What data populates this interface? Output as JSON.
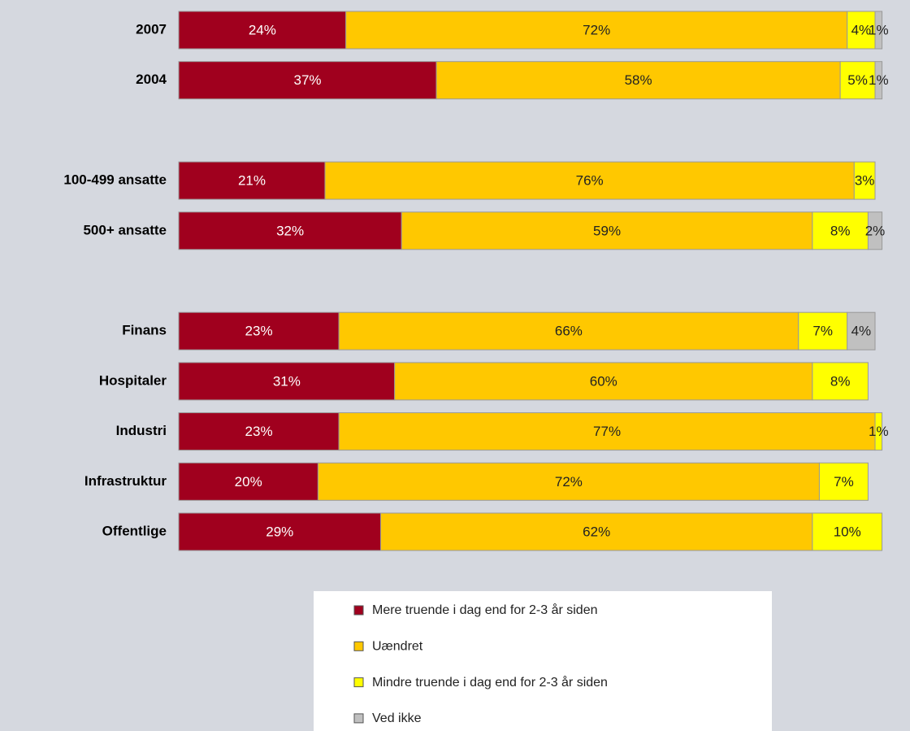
{
  "chart_data": {
    "type": "stacked_bar_horizontal",
    "categories": [
      "2007",
      "2004",
      null,
      "100-499 ansatte",
      "500+ ansatte",
      null,
      "Finans",
      "Hospitaler",
      "Industri",
      "Infrastruktur",
      "Offentlige"
    ],
    "xlim": [
      0,
      100
    ],
    "series": [
      {
        "name": "Mere truende i dag end for 2-3 år siden",
        "color": "#a0001e",
        "values": [
          24,
          37,
          null,
          21,
          32,
          null,
          23,
          31,
          23,
          20,
          29
        ],
        "value_labels": [
          "24%",
          "37%",
          null,
          "21%",
          "32%",
          null,
          "23%",
          "31%",
          "23%",
          "20%",
          "29%"
        ]
      },
      {
        "name": "Uændret",
        "color": "#ffc800",
        "values": [
          72,
          58,
          null,
          76,
          59,
          null,
          66,
          60,
          77,
          72,
          62
        ],
        "value_labels": [
          "72%",
          "58%",
          null,
          "76%",
          "59%",
          null,
          "66%",
          "60%",
          "77%",
          "72%",
          "62%"
        ]
      },
      {
        "name": "Mindre truende i dag end for 2-3 år siden",
        "color": "#ffff00",
        "values": [
          4,
          5,
          null,
          3,
          8,
          null,
          7,
          8,
          1,
          7,
          10
        ],
        "value_labels": [
          "4%",
          "5%",
          null,
          "3%",
          "8%",
          null,
          "7%",
          "8%",
          "1%",
          "7%",
          "10%"
        ]
      },
      {
        "name": "Ved ikke",
        "color": "#c0c0c0",
        "values": [
          1,
          1,
          null,
          null,
          2,
          null,
          4,
          null,
          null,
          null,
          null
        ],
        "value_labels": [
          "1%",
          "1%",
          null,
          null,
          "2%",
          null,
          "4%",
          null,
          null,
          null,
          null
        ]
      }
    ],
    "legend": "bottom"
  }
}
